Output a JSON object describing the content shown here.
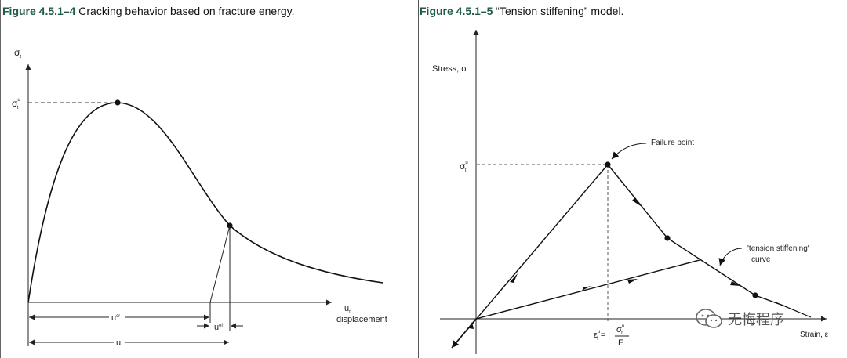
{
  "left_figure": {
    "fig_num": "Figure 4.5.1–4",
    "caption": " Cracking behavior based on fracture energy.",
    "y_label": "σ",
    "y_label_sub": "t",
    "peak_label": "σ",
    "peak_label_sup": "u",
    "peak_label_sub": "t",
    "x_label": "u",
    "x_label_sub": "t",
    "x_label_2": "displacement",
    "dim_ucr": "u",
    "dim_ucr_sup": "cr",
    "dim_uel": "u",
    "dim_uel_sup": "el",
    "dim_u": "u"
  },
  "right_figure": {
    "fig_num": "Figure 4.5.1–5",
    "caption": " “Tension stiffening” model.",
    "y_label": "Stress, σ",
    "failure_label": "Failure point",
    "peak_label": "σ",
    "peak_label_sup": "u",
    "peak_label_sub": "t",
    "ts_label_1": "'tension stiffening'",
    "ts_label_2": "curve",
    "eps_label": "ε",
    "eps_label_sup": "u",
    "eps_label_sub": "t",
    "eps_equals": "=",
    "eps_num": "σ",
    "eps_num_sup": "u",
    "eps_num_sub": "t",
    "eps_den": "E",
    "x_label": "Strain, ε"
  },
  "watermark": {
    "text": "无悔程序",
    "icon": "wechat-icon"
  }
}
